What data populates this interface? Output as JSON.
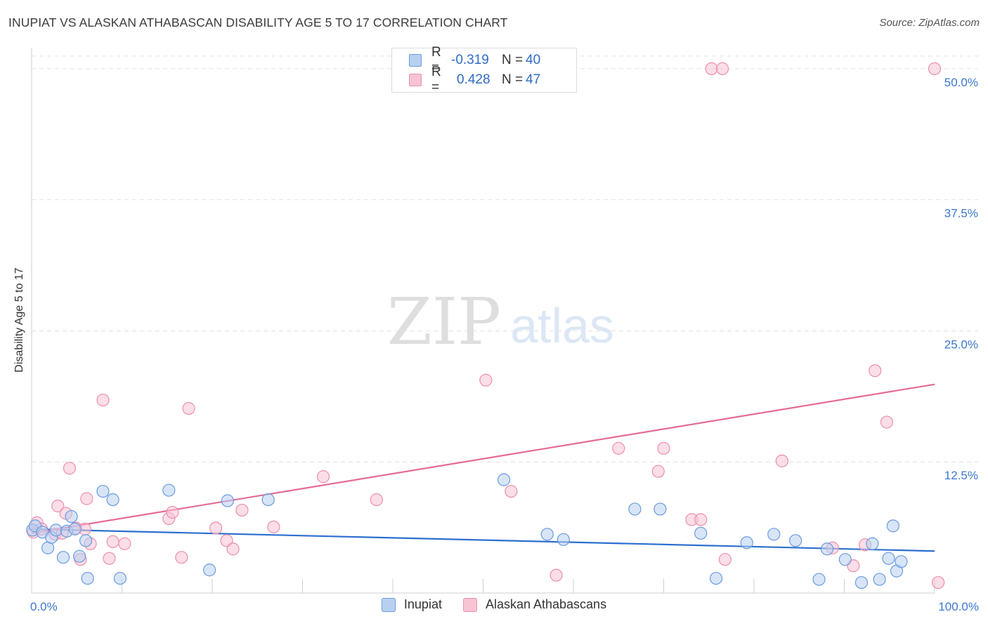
{
  "header": {
    "title": "INUPIAT VS ALASKAN ATHABASCAN DISABILITY AGE 5 TO 17 CORRELATION CHART",
    "source": "Source: ZipAtlas.com"
  },
  "watermark": {
    "zip": "ZIP",
    "atlas": "atlas"
  },
  "legend": {
    "rows": [
      {
        "r_label": "R =",
        "r_value": "-0.319",
        "n_label": "N =",
        "n_value": "40"
      },
      {
        "r_label": "R =",
        "r_value": "0.428",
        "n_label": "N =",
        "n_value": "47"
      }
    ]
  },
  "colors": {
    "blue_fill": "#b8d0f0",
    "blue_stroke": "#6a9be0",
    "blue_line": "#2b6fcf",
    "pink_fill": "#f8c3d3",
    "pink_stroke": "#ec8fae",
    "pink_line": "#e46b96",
    "tick_text": "#3b78d0",
    "grid": "#e2e2e2"
  },
  "chart_data": {
    "type": "scatter",
    "title": "INUPIAT VS ALASKAN ATHABASCAN DISABILITY AGE 5 TO 17 CORRELATION CHART",
    "xlabel": "",
    "ylabel": "Disability Age 5 to 17",
    "xlim": [
      0,
      100
    ],
    "ylim": [
      0,
      52
    ],
    "x_tick_labels": [
      "0.0%",
      "100.0%"
    ],
    "y_ticks": [
      12.5,
      25.0,
      37.5,
      50.0
    ],
    "y_tick_labels": [
      "12.5%",
      "25.0%",
      "37.5%",
      "50.0%"
    ],
    "series": [
      {
        "name": "Inupiat",
        "color": "blue",
        "r": -0.319,
        "n": 40,
        "trend": {
          "x0": 0,
          "y0": 6.1,
          "x1": 100,
          "y1": 4.0
        },
        "points": [
          [
            0.1,
            6.0
          ],
          [
            0.4,
            6.4
          ],
          [
            1.2,
            5.8
          ],
          [
            1.8,
            4.3
          ],
          [
            2.2,
            5.3
          ],
          [
            2.7,
            6.0
          ],
          [
            3.5,
            3.4
          ],
          [
            3.9,
            5.9
          ],
          [
            4.4,
            7.3
          ],
          [
            4.8,
            6.1
          ],
          [
            5.3,
            3.5
          ],
          [
            6.0,
            5.0
          ],
          [
            6.2,
            1.4
          ],
          [
            7.9,
            9.7
          ],
          [
            9.0,
            8.9
          ],
          [
            9.8,
            1.4
          ],
          [
            15.2,
            9.8
          ],
          [
            19.7,
            2.2
          ],
          [
            21.7,
            8.8
          ],
          [
            26.2,
            8.9
          ],
          [
            52.3,
            10.8
          ],
          [
            57.1,
            5.6
          ],
          [
            58.9,
            5.1
          ],
          [
            66.8,
            8.0
          ],
          [
            69.6,
            8.0
          ],
          [
            74.1,
            5.7
          ],
          [
            75.8,
            1.4
          ],
          [
            79.2,
            4.8
          ],
          [
            82.2,
            5.6
          ],
          [
            84.6,
            5.0
          ],
          [
            87.2,
            1.3
          ],
          [
            88.1,
            4.2
          ],
          [
            90.1,
            3.2
          ],
          [
            91.9,
            1.0
          ],
          [
            93.1,
            4.7
          ],
          [
            93.9,
            1.3
          ],
          [
            94.9,
            3.3
          ],
          [
            95.4,
            6.4
          ],
          [
            95.8,
            2.1
          ],
          [
            96.3,
            3.0
          ]
        ]
      },
      {
        "name": "Alaskan Athabascans",
        "color": "pink",
        "r": 0.428,
        "n": 47,
        "trend": {
          "x0": 0,
          "y0": 5.7,
          "x1": 100,
          "y1": 19.9
        },
        "points": [
          [
            0.2,
            5.8
          ],
          [
            0.6,
            6.7
          ],
          [
            1.1,
            6.1
          ],
          [
            2.6,
            5.6
          ],
          [
            2.9,
            8.3
          ],
          [
            3.4,
            5.7
          ],
          [
            3.8,
            7.6
          ],
          [
            4.2,
            11.9
          ],
          [
            4.9,
            6.2
          ],
          [
            5.4,
            3.2
          ],
          [
            5.9,
            6.1
          ],
          [
            6.1,
            9.0
          ],
          [
            6.5,
            4.7
          ],
          [
            7.9,
            18.4
          ],
          [
            8.6,
            3.3
          ],
          [
            9.0,
            4.9
          ],
          [
            10.3,
            4.7
          ],
          [
            15.2,
            7.1
          ],
          [
            15.6,
            7.7
          ],
          [
            16.6,
            3.4
          ],
          [
            17.4,
            17.6
          ],
          [
            20.4,
            6.2
          ],
          [
            21.6,
            5.0
          ],
          [
            22.3,
            4.2
          ],
          [
            23.3,
            7.9
          ],
          [
            26.8,
            6.3
          ],
          [
            32.3,
            11.1
          ],
          [
            38.2,
            8.9
          ],
          [
            50.3,
            20.3
          ],
          [
            53.1,
            9.7
          ],
          [
            58.1,
            1.7
          ],
          [
            65.0,
            13.8
          ],
          [
            69.4,
            11.6
          ],
          [
            70.0,
            13.8
          ],
          [
            73.1,
            7.0
          ],
          [
            74.1,
            7.0
          ],
          [
            75.3,
            50.0
          ],
          [
            76.5,
            50.0
          ],
          [
            76.8,
            3.2
          ],
          [
            83.1,
            12.6
          ],
          [
            88.7,
            4.3
          ],
          [
            91.0,
            2.6
          ],
          [
            92.3,
            4.6
          ],
          [
            93.4,
            21.2
          ],
          [
            94.7,
            16.3
          ],
          [
            100.0,
            50.0
          ],
          [
            100.4,
            1.0
          ]
        ]
      }
    ]
  },
  "bottom_legend": {
    "blue_label": "Inupiat",
    "pink_label": "Alaskan Athabascans"
  }
}
